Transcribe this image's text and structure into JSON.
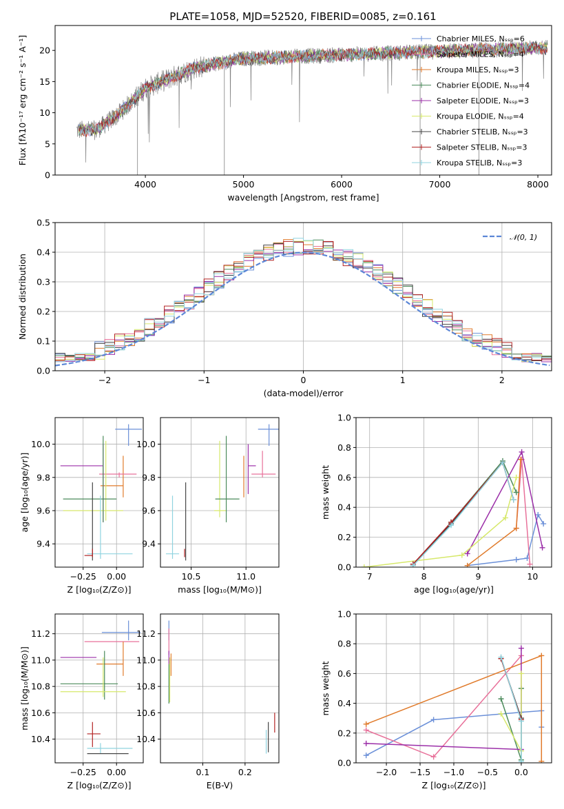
{
  "chart_data": [
    {
      "id": "spectrum",
      "type": "line",
      "title": "PLATE=1058, MJD=52520, FIBERID=0085, z=0.161",
      "xlabel": "wavelength [Angstrom, rest frame]",
      "ylabel": "Flux [fλ10⁻¹⁷ erg cm⁻² s⁻¹ A⁻¹]",
      "xlim": [
        3080,
        8140
      ],
      "ylim": [
        0,
        24
      ],
      "xticks": [
        4000,
        5000,
        6000,
        7000,
        8000
      ],
      "yticks": [
        0,
        5,
        10,
        15,
        20
      ],
      "grid": false,
      "legend_position": "top-right",
      "data_wavelength_range": [
        3300,
        8100
      ],
      "legend": [
        {
          "label": "Chabrier MILES, Nₛₛₚ=6",
          "color": "#6a8fd8",
          "marker": "+"
        },
        {
          "label": "Salpeter MILES, Nₛₛₚ=4",
          "color": "#e8719a",
          "marker": "+"
        },
        {
          "label": "Kroupa MILES, Nₛₛₚ=3",
          "color": "#e07a2a",
          "marker": "+"
        },
        {
          "label": "Chabrier ELODIE, Nₛₛₚ=4",
          "color": "#4a8a5a",
          "marker": "+"
        },
        {
          "label": "Salpeter ELODIE, Nₛₛₚ=3",
          "color": "#9b2ea8",
          "marker": "+"
        },
        {
          "label": "Kroupa ELODIE, Nₛₛₚ=4",
          "color": "#d6e86a",
          "marker": "+"
        },
        {
          "label": "Chabrier STELIB, Nₛₛₚ=3",
          "color": "#444444",
          "marker": "+"
        },
        {
          "label": "Salpeter STELIB, Nₛₛₚ=3",
          "color": "#b22222",
          "marker": "+"
        },
        {
          "label": "Kroupa STELIB, Nₛₛₚ=3",
          "color": "#8fd3df",
          "marker": "+"
        }
      ],
      "data_color": "#808080"
    },
    {
      "id": "residuals",
      "type": "step",
      "xlabel": "(data-model)/error",
      "ylabel": "Normed distribution",
      "xlim": [
        -2.5,
        2.5
      ],
      "ylim": [
        0,
        0.5
      ],
      "xticks": [
        -2,
        -1,
        0,
        1,
        2
      ],
      "yticks": [
        0.0,
        0.1,
        0.2,
        0.3,
        0.4,
        0.5
      ],
      "grid": true,
      "bin_width": 0.1,
      "reference_curve": {
        "label": "𝒩(0, 1)",
        "mean": 0,
        "sigma": 1,
        "color": "#5b86d6",
        "style": "dashed"
      },
      "legend_position": "top-right",
      "series_colors": [
        "#6a8fd8",
        "#e8719a",
        "#e07a2a",
        "#4a8a5a",
        "#9b2ea8",
        "#d6e86a",
        "#444444",
        "#b22222",
        "#8fd3df"
      ]
    },
    {
      "id": "age_vs_Z",
      "type": "errorbar",
      "xlabel": "Z [log₁₀(Z/Z⊙)]",
      "ylabel": "age  [log₁₀(age/yr)]",
      "xlim": [
        -0.46,
        0.2
      ],
      "ylim": [
        9.26,
        10.16
      ],
      "xticks": [
        -0.25,
        0.0
      ],
      "xtick_labels": [
        "−0.25",
        "0.00"
      ],
      "yticks": [
        9.4,
        9.6,
        9.8,
        10.0
      ],
      "grid": true,
      "points": [
        {
          "color": "#6a8fd8",
          "x": 0.09,
          "xerr": [
            0.1,
            0.1
          ],
          "y": 10.09,
          "yerr": [
            0.1,
            0.03
          ]
        },
        {
          "color": "#e07a2a",
          "x": 0.05,
          "xerr": [
            0.17,
            0.0
          ],
          "y": 9.75,
          "yerr": [
            0.07,
            0.18
          ]
        },
        {
          "color": "#e8719a",
          "x": 0.02,
          "xerr": [
            0.15,
            0.13
          ],
          "y": 9.82,
          "yerr": [
            0.02,
            0.01
          ]
        },
        {
          "color": "#9b2ea8",
          "x": -0.1,
          "xerr": [
            0.32,
            0.0
          ],
          "y": 9.87,
          "yerr": [
            0.34,
            0.13
          ]
        },
        {
          "color": "#d6e86a",
          "x": -0.08,
          "xerr": [
            0.32,
            0.13
          ],
          "y": 9.6,
          "yerr": [
            0.06,
            0.42
          ]
        },
        {
          "color": "#4a8a5a",
          "x": -0.1,
          "xerr": [
            0.3,
            0.1
          ],
          "y": 9.67,
          "yerr": [
            0.14,
            0.38
          ]
        },
        {
          "color": "#8fd3df",
          "x": -0.12,
          "xerr": [
            0.1,
            0.24
          ],
          "y": 9.34,
          "yerr": [
            0.03,
            0.35
          ]
        },
        {
          "color": "#444444",
          "x": -0.18,
          "xerr": [
            0.0,
            0.0
          ],
          "y": 9.34,
          "yerr": [
            0.04,
            0.43
          ]
        },
        {
          "color": "#b22222",
          "x": -0.18,
          "xerr": [
            0.06,
            0.0
          ],
          "y": 9.33,
          "yerr": [
            0.01,
            0.04
          ]
        }
      ]
    },
    {
      "id": "age_vs_mass",
      "type": "errorbar",
      "xlabel": "mass [log₁₀(M/M⊙)]",
      "ylabel": "",
      "xlim": [
        10.22,
        11.3
      ],
      "ylim": [
        9.26,
        10.16
      ],
      "xticks": [
        10.5,
        11.0
      ],
      "yticks": [
        9.4,
        9.6,
        9.8,
        10.0
      ],
      "grid": true,
      "points": [
        {
          "color": "#6a8fd8",
          "x": 11.21,
          "xerr": [
            0.1,
            0.1
          ],
          "y": 10.09,
          "yerr": [
            0.1,
            0.03
          ]
        },
        {
          "color": "#e07a2a",
          "x": 10.98,
          "xerr": [
            0.0,
            0.0
          ],
          "y": 9.75,
          "yerr": [
            0.07,
            0.18
          ]
        },
        {
          "color": "#e8719a",
          "x": 11.15,
          "xerr": [
            0.1,
            0.12
          ],
          "y": 9.82,
          "yerr": [
            0.02,
            0.14
          ]
        },
        {
          "color": "#9b2ea8",
          "x": 11.02,
          "xerr": [
            0.0,
            0.07
          ],
          "y": 9.87,
          "yerr": [
            0.17,
            0.13
          ]
        },
        {
          "color": "#d6e86a",
          "x": 10.76,
          "xerr": [
            0.05,
            0.06
          ],
          "y": 9.6,
          "yerr": [
            0.04,
            0.42
          ]
        },
        {
          "color": "#4a8a5a",
          "x": 10.82,
          "xerr": [
            0.1,
            0.12
          ],
          "y": 9.67,
          "yerr": [
            0.14,
            0.38
          ]
        },
        {
          "color": "#8fd3df",
          "x": 10.33,
          "xerr": [
            0.06,
            0.06
          ],
          "y": 9.34,
          "yerr": [
            0.03,
            0.35
          ]
        },
        {
          "color": "#444444",
          "x": 10.45,
          "xerr": [
            0.0,
            0.0
          ],
          "y": 9.34,
          "yerr": [
            0.04,
            0.43
          ]
        },
        {
          "color": "#b22222",
          "x": 10.44,
          "xerr": [
            0.0,
            0.0
          ],
          "y": 9.33,
          "yerr": [
            0.01,
            0.04
          ]
        }
      ]
    },
    {
      "id": "massweight_vs_age",
      "type": "line",
      "xlabel": "age  [log₁₀(age/yr)]",
      "ylabel": "mass weight",
      "xlim": [
        6.75,
        10.35
      ],
      "ylim": [
        0,
        1
      ],
      "xticks": [
        7,
        8,
        9,
        10
      ],
      "yticks": [
        0.0,
        0.2,
        0.4,
        0.6,
        0.8,
        1.0
      ],
      "grid": true,
      "marker": "+",
      "series": [
        {
          "color": "#6a8fd8",
          "x": [
            8.8,
            9.7,
            9.9,
            10.1,
            10.2
          ],
          "y": [
            0.01,
            0.05,
            0.06,
            0.35,
            0.29
          ]
        },
        {
          "color": "#e8719a",
          "x": [
            9.7,
            9.8,
            9.95
          ],
          "y": [
            0.26,
            0.72,
            0.02
          ]
        },
        {
          "color": "#e07a2a",
          "x": [
            8.8,
            9.7,
            9.78
          ],
          "y": [
            0.01,
            0.26,
            0.72
          ]
        },
        {
          "color": "#4a8a5a",
          "x": [
            7.8,
            8.5,
            9.45,
            9.7
          ],
          "y": [
            0.01,
            0.3,
            0.71,
            0.5
          ]
        },
        {
          "color": "#9b2ea8",
          "x": [
            8.8,
            9.8,
            10.18
          ],
          "y": [
            0.09,
            0.77,
            0.13
          ]
        },
        {
          "color": "#d6e86a",
          "x": [
            6.9,
            8.7,
            9.5,
            9.7
          ],
          "y": [
            0.0,
            0.08,
            0.33,
            0.6
          ]
        },
        {
          "color": "#444444",
          "x": [
            7.8,
            8.5,
            9.45,
            9.65
          ],
          "y": [
            0.02,
            0.29,
            0.7,
            0.45
          ]
        },
        {
          "color": "#b22222",
          "x": [
            7.8,
            8.5,
            9.45,
            9.65
          ],
          "y": [
            0.02,
            0.3,
            0.7,
            0.45
          ]
        },
        {
          "color": "#8fd3df",
          "x": [
            7.8,
            8.5,
            9.45,
            9.65
          ],
          "y": [
            0.01,
            0.28,
            0.7,
            0.45
          ]
        }
      ]
    },
    {
      "id": "mass_vs_Z",
      "type": "errorbar",
      "xlabel": "Z [log₁₀(Z/Z⊙)]",
      "ylabel": "mass [log₁₀(M/M⊙)]",
      "xlim": [
        -0.46,
        0.2
      ],
      "ylim": [
        10.22,
        11.35
      ],
      "xticks": [
        -0.25,
        0.0
      ],
      "xtick_labels": [
        "−0.25",
        "0.00"
      ],
      "yticks": [
        10.4,
        10.6,
        10.8,
        11.0,
        11.2
      ],
      "grid": true,
      "points": [
        {
          "color": "#6a8fd8",
          "x": 0.09,
          "xerr": [
            0.2,
            0.09
          ],
          "y": 11.21,
          "yerr": [
            0.06,
            0.09
          ]
        },
        {
          "color": "#e8719a",
          "x": 0.02,
          "xerr": [
            0.26,
            0.15
          ],
          "y": 11.14,
          "yerr": [
            0.0,
            0.0
          ]
        },
        {
          "color": "#e07a2a",
          "x": 0.05,
          "xerr": [
            0.2,
            0.0
          ],
          "y": 10.97,
          "yerr": [
            0.09,
            0.17
          ]
        },
        {
          "color": "#9b2ea8",
          "x": -0.15,
          "xerr": [
            0.27,
            0.0
          ],
          "y": 11.02,
          "yerr": [
            0.0,
            0.0
          ]
        },
        {
          "color": "#4a8a5a",
          "x": -0.09,
          "xerr": [
            0.33,
            0.1
          ],
          "y": 10.82,
          "yerr": [
            0.12,
            0.25
          ]
        },
        {
          "color": "#d6e86a",
          "x": -0.1,
          "xerr": [
            0.32,
            0.17
          ],
          "y": 10.76,
          "yerr": [
            0.04,
            0.26
          ]
        },
        {
          "color": "#8fd3df",
          "x": -0.12,
          "xerr": [
            0.1,
            0.24
          ],
          "y": 10.33,
          "yerr": [
            0.04,
            0.04
          ]
        },
        {
          "color": "#444444",
          "x": -0.18,
          "xerr": [
            0.04,
            0.27
          ],
          "y": 10.29,
          "yerr": [
            0.0,
            0.0
          ]
        },
        {
          "color": "#b22222",
          "x": -0.18,
          "xerr": [
            0.04,
            0.06
          ],
          "y": 10.44,
          "yerr": [
            0.1,
            0.09
          ]
        }
      ]
    },
    {
      "id": "mass_vs_EBV",
      "type": "errorbar",
      "xlabel": "E(B-V)",
      "ylabel": "",
      "xlim": [
        0.0,
        0.28
      ],
      "ylim": [
        10.22,
        11.35
      ],
      "xticks": [
        0.1,
        0.2
      ],
      "yticks": [
        10.4,
        10.6,
        10.8,
        11.0,
        11.2
      ],
      "grid": true,
      "points": [
        {
          "color": "#6a8fd8",
          "x": 0.02,
          "y": 11.21,
          "yerr": [
            0.06,
            0.09
          ]
        },
        {
          "color": "#e8719a",
          "x": 0.02,
          "y": 11.14,
          "yerr": [
            0.1,
            0.1
          ]
        },
        {
          "color": "#e07a2a",
          "x": 0.025,
          "y": 10.97,
          "yerr": [
            0.09,
            0.08
          ]
        },
        {
          "color": "#9b2ea8",
          "x": 0.02,
          "y": 11.02,
          "yerr": [
            0.05,
            0.05
          ]
        },
        {
          "color": "#4a8a5a",
          "x": 0.02,
          "y": 10.82,
          "yerr": [
            0.15,
            0.15
          ]
        },
        {
          "color": "#d6e86a",
          "x": 0.022,
          "y": 10.76,
          "yerr": [
            0.08,
            0.26
          ]
        },
        {
          "color": "#8fd3df",
          "x": 0.25,
          "y": 10.33,
          "yerr": [
            0.04,
            0.14
          ]
        },
        {
          "color": "#444444",
          "x": 0.255,
          "y": 10.4,
          "yerr": [
            0.1,
            0.13
          ]
        },
        {
          "color": "#b22222",
          "x": 0.27,
          "y": 10.5,
          "yerr": [
            0.05,
            0.1
          ]
        }
      ]
    },
    {
      "id": "massweight_vs_Z",
      "type": "line",
      "xlabel": "Z [log₁₀(Z/Z⊙)]",
      "ylabel": "mass weight",
      "xlim": [
        -2.45,
        0.45
      ],
      "ylim": [
        0,
        1
      ],
      "xticks": [
        -2.0,
        -1.5,
        -1.0,
        -0.5,
        0.0
      ],
      "xtick_labels": [
        "−2.0",
        "−1.5",
        "−1.0",
        "−0.5",
        "0.0"
      ],
      "yticks": [
        0.0,
        0.2,
        0.4,
        0.6,
        0.8,
        1.0
      ],
      "grid": true,
      "marker": "+",
      "series": [
        {
          "color": "#6a8fd8",
          "x": [
            -2.3,
            -1.3,
            0.0,
            0.3,
            0.3
          ],
          "y": [
            0.05,
            0.29,
            0.34,
            0.35,
            0.24
          ]
        },
        {
          "color": "#e8719a",
          "x": [
            -2.3,
            -1.3,
            0.0
          ],
          "y": [
            0.22,
            0.04,
            0.72
          ]
        },
        {
          "color": "#e07a2a",
          "x": [
            -2.3,
            0.3,
            0.3
          ],
          "y": [
            0.26,
            0.72,
            0.01
          ]
        },
        {
          "color": "#4a8a5a",
          "x": [
            -0.3,
            0.0,
            0.0
          ],
          "y": [
            0.43,
            0.02,
            0.5
          ]
        },
        {
          "color": "#9b2ea8",
          "x": [
            -2.3,
            0.0,
            0.0
          ],
          "y": [
            0.13,
            0.09,
            0.77
          ]
        },
        {
          "color": "#d6e86a",
          "x": [
            -0.3,
            0.0,
            0.0
          ],
          "y": [
            0.33,
            0.08,
            0.6
          ]
        },
        {
          "color": "#444444",
          "x": [
            -0.3,
            0.0
          ],
          "y": [
            0.7,
            0.3
          ]
        },
        {
          "color": "#b22222",
          "x": [
            -0.3,
            0.0
          ],
          "y": [
            0.7,
            0.29
          ]
        },
        {
          "color": "#8fd3df",
          "x": [
            -0.3,
            0.0,
            0.0
          ],
          "y": [
            0.71,
            0.28,
            0.01
          ]
        }
      ]
    }
  ]
}
